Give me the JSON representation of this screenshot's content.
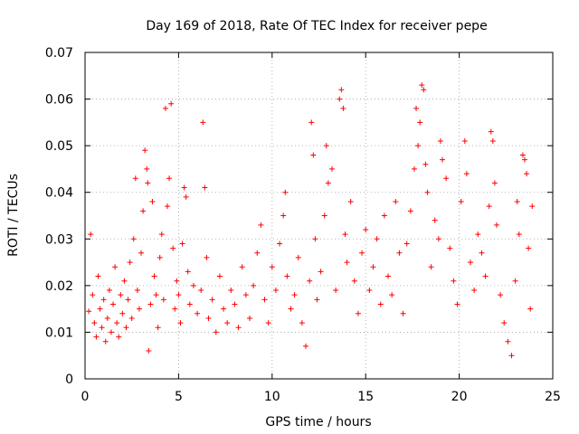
{
  "chart_data": {
    "type": "scatter",
    "title": "Day 169 of 2018, Rate Of TEC Index for receiver pepe",
    "xlabel": "GPS time / hours",
    "ylabel": "ROTI / TECUs",
    "xlim": [
      0,
      25
    ],
    "ylim": [
      0,
      0.07
    ],
    "xticks": [
      0,
      5,
      10,
      15,
      20,
      25
    ],
    "yticks": [
      0,
      0.01,
      0.02,
      0.03,
      0.04,
      0.05,
      0.06,
      0.07
    ],
    "xtick_labels": [
      "0",
      "5",
      "10",
      "15",
      "20",
      "25"
    ],
    "ytick_labels": [
      "0",
      "0.01",
      "0.02",
      "0.03",
      "0.04",
      "0.05",
      "0.06",
      "0.07"
    ],
    "grid": true,
    "marker": "plus",
    "color": "#ff0000",
    "series": [
      {
        "name": "ROTI",
        "points": [
          [
            0.2,
            0.0145
          ],
          [
            0.3,
            0.031
          ],
          [
            0.4,
            0.018
          ],
          [
            0.5,
            0.012
          ],
          [
            0.6,
            0.009
          ],
          [
            0.7,
            0.022
          ],
          [
            0.8,
            0.015
          ],
          [
            0.9,
            0.011
          ],
          [
            1.0,
            0.017
          ],
          [
            1.1,
            0.008
          ],
          [
            1.2,
            0.013
          ],
          [
            1.3,
            0.019
          ],
          [
            1.4,
            0.01
          ],
          [
            1.5,
            0.016
          ],
          [
            1.6,
            0.024
          ],
          [
            1.7,
            0.012
          ],
          [
            1.8,
            0.009
          ],
          [
            1.9,
            0.018
          ],
          [
            2.0,
            0.014
          ],
          [
            2.1,
            0.021
          ],
          [
            2.2,
            0.011
          ],
          [
            2.3,
            0.017
          ],
          [
            2.4,
            0.025
          ],
          [
            2.5,
            0.013
          ],
          [
            2.6,
            0.03
          ],
          [
            2.7,
            0.043
          ],
          [
            2.8,
            0.019
          ],
          [
            2.9,
            0.015
          ],
          [
            3.0,
            0.027
          ],
          [
            3.1,
            0.036
          ],
          [
            3.2,
            0.049
          ],
          [
            3.3,
            0.045
          ],
          [
            3.35,
            0.042
          ],
          [
            3.4,
            0.006
          ],
          [
            3.5,
            0.016
          ],
          [
            3.6,
            0.038
          ],
          [
            3.7,
            0.022
          ],
          [
            3.8,
            0.018
          ],
          [
            3.9,
            0.011
          ],
          [
            4.0,
            0.026
          ],
          [
            4.1,
            0.031
          ],
          [
            4.2,
            0.017
          ],
          [
            4.3,
            0.058
          ],
          [
            4.4,
            0.037
          ],
          [
            4.5,
            0.043
          ],
          [
            4.6,
            0.059
          ],
          [
            4.7,
            0.028
          ],
          [
            4.8,
            0.015
          ],
          [
            4.9,
            0.021
          ],
          [
            5.0,
            0.018
          ],
          [
            5.1,
            0.012
          ],
          [
            5.2,
            0.029
          ],
          [
            5.3,
            0.041
          ],
          [
            5.4,
            0.039
          ],
          [
            5.5,
            0.023
          ],
          [
            5.6,
            0.016
          ],
          [
            5.8,
            0.02
          ],
          [
            6.0,
            0.014
          ],
          [
            6.2,
            0.019
          ],
          [
            6.3,
            0.055
          ],
          [
            6.4,
            0.041
          ],
          [
            6.5,
            0.026
          ],
          [
            6.6,
            0.013
          ],
          [
            6.8,
            0.017
          ],
          [
            7.0,
            0.01
          ],
          [
            7.2,
            0.022
          ],
          [
            7.4,
            0.015
          ],
          [
            7.6,
            0.012
          ],
          [
            7.8,
            0.019
          ],
          [
            8.0,
            0.016
          ],
          [
            8.2,
            0.011
          ],
          [
            8.4,
            0.024
          ],
          [
            8.6,
            0.018
          ],
          [
            8.8,
            0.013
          ],
          [
            9.0,
            0.02
          ],
          [
            9.2,
            0.027
          ],
          [
            9.4,
            0.033
          ],
          [
            9.6,
            0.017
          ],
          [
            9.8,
            0.012
          ],
          [
            10.0,
            0.024
          ],
          [
            10.2,
            0.019
          ],
          [
            10.4,
            0.029
          ],
          [
            10.6,
            0.035
          ],
          [
            10.7,
            0.04
          ],
          [
            10.8,
            0.022
          ],
          [
            11.0,
            0.015
          ],
          [
            11.2,
            0.018
          ],
          [
            11.4,
            0.026
          ],
          [
            11.6,
            0.012
          ],
          [
            11.8,
            0.007
          ],
          [
            12.0,
            0.021
          ],
          [
            12.1,
            0.055
          ],
          [
            12.2,
            0.048
          ],
          [
            12.3,
            0.03
          ],
          [
            12.4,
            0.017
          ],
          [
            12.6,
            0.023
          ],
          [
            12.8,
            0.035
          ],
          [
            12.9,
            0.05
          ],
          [
            13.0,
            0.042
          ],
          [
            13.2,
            0.045
          ],
          [
            13.4,
            0.019
          ],
          [
            13.6,
            0.06
          ],
          [
            13.7,
            0.062
          ],
          [
            13.8,
            0.058
          ],
          [
            13.9,
            0.031
          ],
          [
            14.0,
            0.025
          ],
          [
            14.2,
            0.038
          ],
          [
            14.4,
            0.021
          ],
          [
            14.6,
            0.014
          ],
          [
            14.8,
            0.027
          ],
          [
            15.0,
            0.032
          ],
          [
            15.2,
            0.019
          ],
          [
            15.4,
            0.024
          ],
          [
            15.6,
            0.03
          ],
          [
            15.8,
            0.016
          ],
          [
            16.0,
            0.035
          ],
          [
            16.2,
            0.022
          ],
          [
            16.4,
            0.018
          ],
          [
            16.6,
            0.038
          ],
          [
            16.8,
            0.027
          ],
          [
            17.0,
            0.014
          ],
          [
            17.2,
            0.029
          ],
          [
            17.4,
            0.036
          ],
          [
            17.6,
            0.045
          ],
          [
            17.7,
            0.058
          ],
          [
            17.8,
            0.05
          ],
          [
            17.9,
            0.055
          ],
          [
            18.0,
            0.063
          ],
          [
            18.1,
            0.062
          ],
          [
            18.2,
            0.046
          ],
          [
            18.3,
            0.04
          ],
          [
            18.5,
            0.024
          ],
          [
            18.7,
            0.034
          ],
          [
            18.9,
            0.03
          ],
          [
            19.0,
            0.051
          ],
          [
            19.1,
            0.047
          ],
          [
            19.3,
            0.043
          ],
          [
            19.5,
            0.028
          ],
          [
            19.7,
            0.021
          ],
          [
            19.9,
            0.016
          ],
          [
            20.1,
            0.038
          ],
          [
            20.3,
            0.051
          ],
          [
            20.4,
            0.044
          ],
          [
            20.6,
            0.025
          ],
          [
            20.8,
            0.019
          ],
          [
            21.0,
            0.031
          ],
          [
            21.2,
            0.027
          ],
          [
            21.4,
            0.022
          ],
          [
            21.6,
            0.037
          ],
          [
            21.7,
            0.053
          ],
          [
            21.8,
            0.051
          ],
          [
            21.9,
            0.042
          ],
          [
            22.0,
            0.033
          ],
          [
            22.2,
            0.018
          ],
          [
            22.4,
            0.012
          ],
          [
            22.6,
            0.008
          ],
          [
            22.8,
            0.005
          ],
          [
            23.0,
            0.021
          ],
          [
            23.1,
            0.038
          ],
          [
            23.2,
            0.031
          ],
          [
            23.4,
            0.048
          ],
          [
            23.5,
            0.047
          ],
          [
            23.6,
            0.044
          ],
          [
            23.7,
            0.028
          ],
          [
            23.8,
            0.015
          ],
          [
            23.9,
            0.037
          ]
        ]
      }
    ]
  }
}
